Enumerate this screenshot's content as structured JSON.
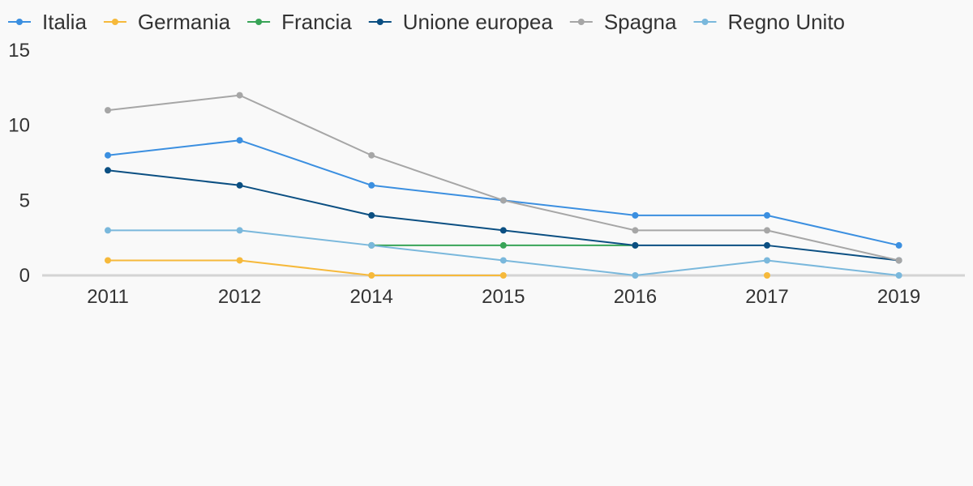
{
  "chart_data": {
    "type": "line",
    "title": "",
    "xlabel": "",
    "ylabel": "",
    "categories": [
      "2011",
      "2012",
      "2014",
      "2015",
      "2016",
      "2017",
      "2019"
    ],
    "yticks": [
      "0",
      "5",
      "10",
      "15"
    ],
    "ylim": [
      0,
      15
    ],
    "grid": false,
    "legend_position": "top-left",
    "series": [
      {
        "name": "Italia",
        "color": "#3b8fe0",
        "values": [
          8,
          9,
          6,
          5,
          4,
          4,
          2
        ]
      },
      {
        "name": "Germania",
        "color": "#f6b93b",
        "values": [
          1,
          1,
          0,
          0,
          null,
          0,
          null
        ]
      },
      {
        "name": "Francia",
        "color": "#38a457",
        "values": [
          null,
          null,
          2,
          2,
          2,
          null,
          null
        ]
      },
      {
        "name": "Unione europea",
        "color": "#0b4f82",
        "values": [
          7,
          6,
          4,
          3,
          2,
          2,
          1
        ]
      },
      {
        "name": "Spagna",
        "color": "#a6a6a6",
        "values": [
          11,
          12,
          8,
          5,
          3,
          3,
          1
        ]
      },
      {
        "name": "Regno Unito",
        "color": "#7ab8dc",
        "values": [
          3,
          3,
          2,
          1,
          0,
          1,
          0
        ]
      }
    ]
  }
}
